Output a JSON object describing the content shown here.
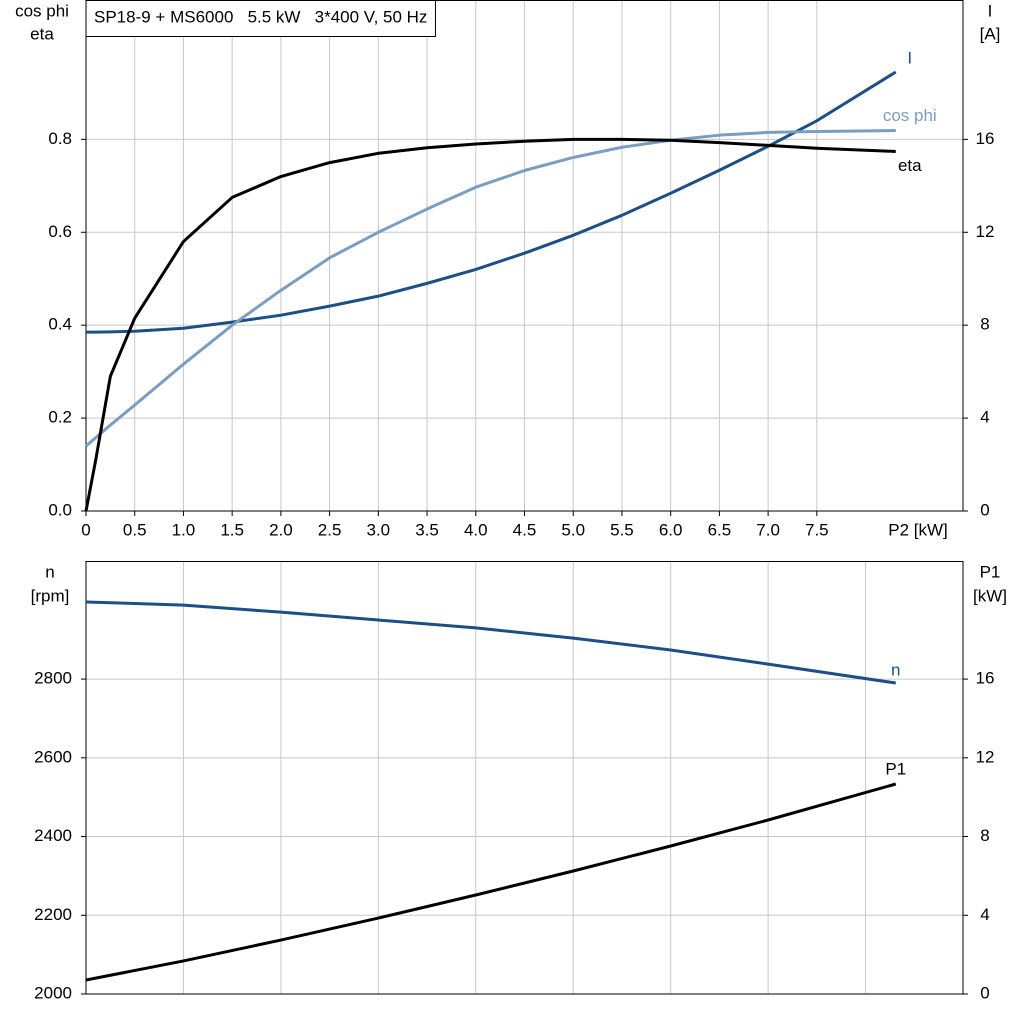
{
  "chart_data": [
    {
      "type": "line",
      "title": "SP18-9 + MS6000   5.5 kW   3*400 V, 50 Hz",
      "x_label": "P2 [kW]",
      "y_label": [
        "cos phi",
        "eta"
      ],
      "y2_label": [
        "I",
        "[A]"
      ],
      "x": [
        0,
        0.1,
        0.25,
        0.5,
        1,
        1.5,
        2,
        2.5,
        3,
        3.5,
        4,
        4.5,
        5,
        5.5,
        6,
        6.5,
        7,
        7.5,
        8.31
      ],
      "series": [
        {
          "name": "I",
          "color": "#1b4f86",
          "axis": "y2",
          "values": [
            7.7,
            7.7,
            7.71,
            7.74,
            7.87,
            8.13,
            8.43,
            8.82,
            9.25,
            9.8,
            10.4,
            11.1,
            11.87,
            12.73,
            13.68,
            14.67,
            15.7,
            16.8,
            18.9
          ]
        },
        {
          "name": "cos phi",
          "color": "#7a9dc1",
          "values": [
            0.14,
            0.158,
            0.185,
            0.228,
            0.316,
            0.4,
            0.475,
            0.545,
            0.6,
            0.65,
            0.697,
            0.733,
            0.761,
            0.783,
            0.798,
            0.809,
            0.815,
            0.817,
            0.819
          ]
        },
        {
          "name": "eta",
          "color": "#000000",
          "values": [
            0,
            0.11,
            0.29,
            0.415,
            0.58,
            0.675,
            0.72,
            0.75,
            0.77,
            0.782,
            0.79,
            0.796,
            0.8,
            0.8,
            0.798,
            0.793,
            0.787,
            0.781,
            0.774
          ]
        }
      ],
      "xlim": [
        0,
        9
      ],
      "xticks": [
        0,
        0.5,
        {
          "value": 1,
          "label": "1.0"
        },
        1.5,
        {
          "value": 2,
          "label": "2.0"
        },
        2.5,
        {
          "value": 3,
          "label": "3.0"
        },
        3.5,
        {
          "value": 4,
          "label": "4.0"
        },
        4.5,
        {
          "value": 5,
          "label": "5.0"
        },
        5.5,
        {
          "value": 6,
          "label": "6.0"
        },
        6.5,
        {
          "value": 7,
          "label": "7.0"
        },
        7.5
      ],
      "ylim": [
        0,
        1.1
      ],
      "yticks": [
        {
          "value": 0,
          "label": "0.0"
        },
        0.2,
        0.4,
        0.6,
        0.8
      ],
      "y2lim": [
        0,
        22
      ],
      "y2ticks": [
        0,
        4,
        8,
        12,
        16
      ],
      "grid": true
    },
    {
      "type": "line",
      "y_label": [
        "n",
        "[rpm]"
      ],
      "y2_label": [
        "P1",
        "[kW]"
      ],
      "x": [
        0,
        1,
        2,
        3,
        4,
        5,
        6,
        7,
        8.31
      ],
      "series": [
        {
          "name": "n",
          "color": "#1b4f86",
          "values": [
            2996,
            2988,
            2970,
            2950,
            2930,
            2904,
            2874,
            2838,
            2790
          ]
        },
        {
          "name": "P1",
          "color": "#000000",
          "axis": "y2",
          "values": [
            0.71,
            1.68,
            2.74,
            3.86,
            5.03,
            6.25,
            7.52,
            8.84,
            10.67
          ]
        }
      ],
      "xlim": [
        0,
        9
      ],
      "ylim": [
        2000,
        3100
      ],
      "yticks": [
        2000,
        2200,
        2400,
        2600,
        2800
      ],
      "y2lim": [
        0,
        22
      ],
      "y2ticks": [
        0,
        4,
        8,
        12,
        16
      ],
      "grid": true
    }
  ]
}
